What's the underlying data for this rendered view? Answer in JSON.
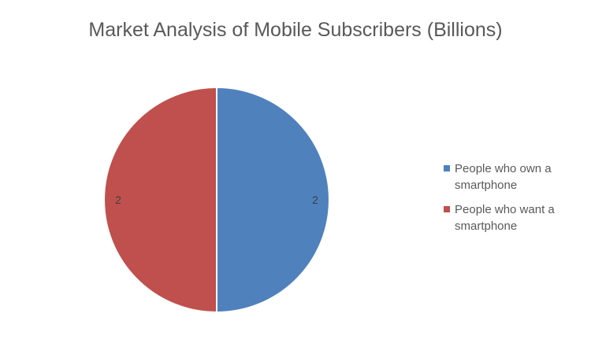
{
  "chart_data": {
    "type": "pie",
    "title": "Market Analysis of Mobile Subscribers (Billions)",
    "categories": [
      "People who own a smartphone",
      "People who want a smartphone"
    ],
    "values": [
      2,
      2
    ],
    "data_labels": [
      "2",
      "2"
    ],
    "colors": [
      "#4F81BD",
      "#C0504D"
    ],
    "legend_position": "right",
    "start_angle_deg": 0,
    "direction": "clockwise"
  }
}
